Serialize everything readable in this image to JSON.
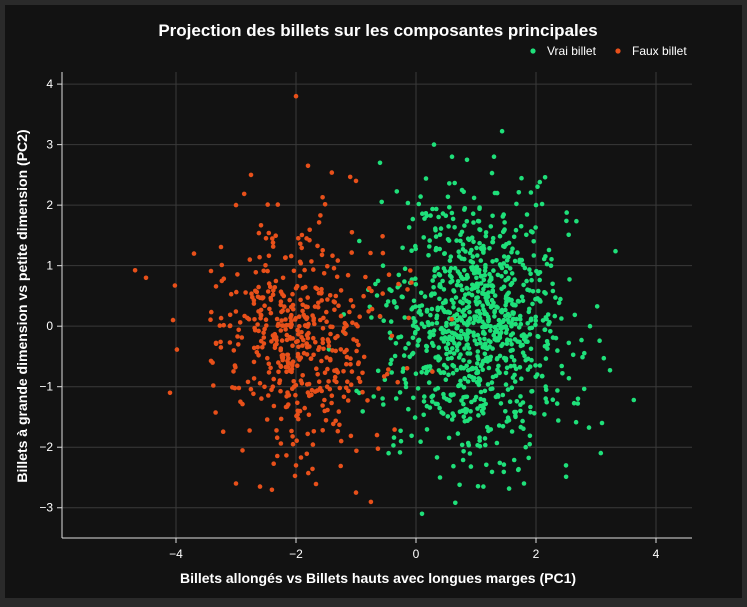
{
  "chart_data": {
    "type": "scatter",
    "title": "Projection des billets sur les composantes principales",
    "xlabel": "Billets allongés vs Billets hauts avec longues marges (PC1)",
    "ylabel": "Billets à grande dimension vs petite dimension (PC2)",
    "xlim": [
      -5.9,
      4.6
    ],
    "ylim": [
      -3.5,
      4.2
    ],
    "xticks": [
      -4,
      -2,
      0,
      2,
      4
    ],
    "yticks": [
      -3,
      -2,
      -1,
      0,
      1,
      2,
      3,
      4
    ],
    "grid": true,
    "legend_position": "top-right",
    "colors": {
      "figure_bg": "#2a2a2a",
      "plot_bg": "#121212",
      "grid": "#3a3a3a",
      "axis": "#dddddd",
      "text": "#ffffff"
    },
    "series": [
      {
        "name": "Vrai billet",
        "color": "#1fe07a",
        "count": 1000,
        "center": [
          1.0,
          0.0
        ],
        "spread": [
          0.75,
          1.0
        ],
        "points": [
          [
            0.1,
            -3.1
          ],
          [
            0.3,
            3.0
          ],
          [
            0.6,
            2.8
          ],
          [
            0.85,
            2.75
          ],
          [
            1.3,
            2.8
          ],
          [
            -0.6,
            2.7
          ],
          [
            3.1,
            -1.6
          ],
          [
            2.9,
            0.0
          ],
          [
            2.7,
            -1.2
          ],
          [
            2.5,
            -2.3
          ],
          [
            -0.25,
            -1.9
          ],
          [
            0.4,
            -2.5
          ],
          [
            1.8,
            -2.6
          ],
          [
            2.0,
            2.0
          ],
          [
            -0.55,
            1.0
          ]
        ]
      },
      {
        "name": "Faux billet",
        "color": "#e8501a",
        "count": 500,
        "center": [
          -2.0,
          -0.2
        ],
        "spread": [
          0.7,
          0.95
        ],
        "points": [
          [
            -4.5,
            0.8
          ],
          [
            -4.1,
            -1.1
          ],
          [
            -4.05,
            0.1
          ],
          [
            -2.0,
            3.8
          ],
          [
            -1.8,
            2.65
          ],
          [
            -1.0,
            2.4
          ],
          [
            -1.0,
            -2.75
          ],
          [
            -2.6,
            -2.65
          ],
          [
            -3.0,
            -2.6
          ],
          [
            -2.0,
            -2.3
          ],
          [
            -0.65,
            -1.8
          ],
          [
            -0.45,
            0.85
          ],
          [
            -2.75,
            2.5
          ],
          [
            -3.0,
            2.0
          ],
          [
            -3.7,
            1.2
          ]
        ]
      }
    ]
  }
}
